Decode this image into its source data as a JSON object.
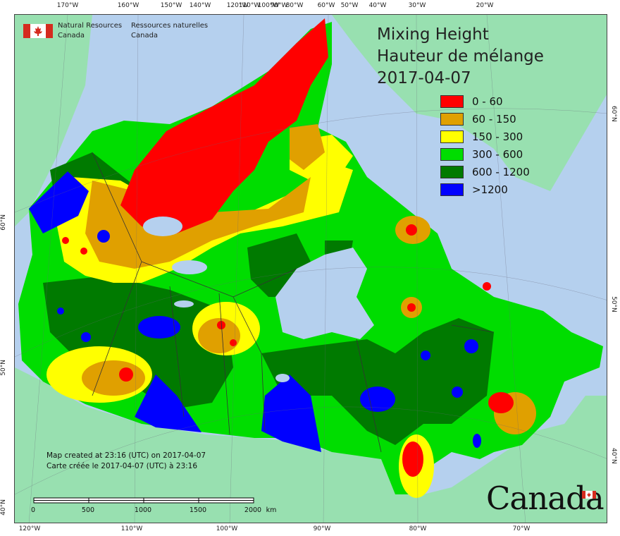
{
  "map": {
    "title": [
      "Mixing Height",
      "Hauteur de mélange",
      "2017-04-07"
    ],
    "legend": [
      {
        "label": "0 - 60",
        "color": "#ff0000"
      },
      {
        "label": "60 - 150",
        "color": "#e0a000"
      },
      {
        "label": "150 - 300",
        "color": "#ffff00"
      },
      {
        "label": "300 - 600",
        "color": "#00dd00"
      },
      {
        "label": "600 - 1200",
        "color": "#007a00"
      },
      {
        "label": ">1200",
        "color": "#0000ff"
      }
    ],
    "agency": {
      "en_line1": "Natural Resources",
      "en_line2": "Canada",
      "fr_line1": "Ressources naturelles",
      "fr_line2": "Canada"
    },
    "credit": [
      "Map created at 23:16 (UTC) on 2017-04-07",
      "Carte créée le 2017-04-07 (UTC) à 23:16"
    ],
    "scale_labels": [
      "0",
      "500",
      "1000",
      "1500",
      "2000",
      "km"
    ],
    "wordmark": "Canada",
    "ticks_top": [
      "170°W",
      "160°W",
      "150°W",
      "140°W",
      "120°W",
      "110°W",
      "100°W",
      "90°W",
      "80°W",
      "60°W",
      "50°W",
      "40°W",
      "30°W",
      "20°W"
    ],
    "ticks_bottom": [
      "120°W",
      "110°W",
      "100°W",
      "90°W",
      "80°W",
      "70°W"
    ],
    "ticks_left": [
      "60°N",
      "50°N",
      "40°N"
    ],
    "ticks_right": [
      "60°N",
      "50°N",
      "40°N"
    ],
    "colors": {
      "ocean": "#b5d0ee",
      "land_outside": "#98e0b0",
      "border": "#444444"
    }
  }
}
